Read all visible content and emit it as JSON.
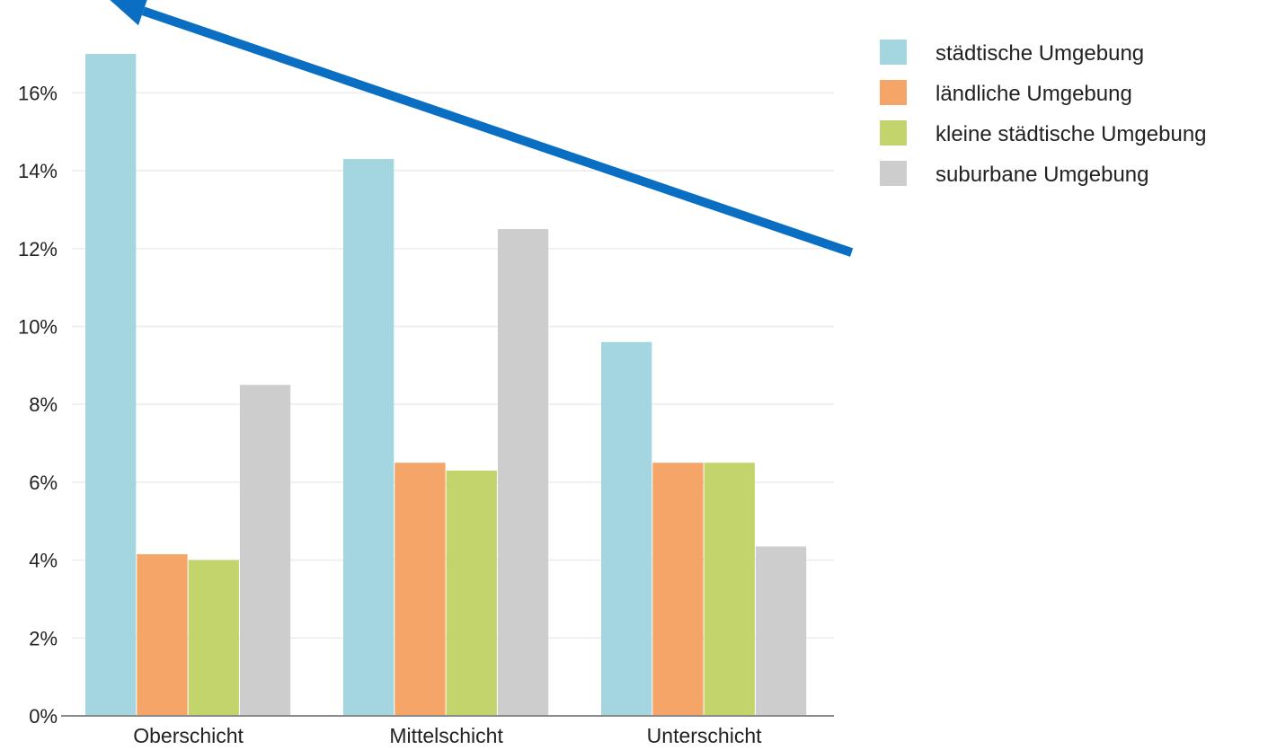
{
  "chart_data": {
    "type": "bar",
    "categories": [
      "Oberschicht",
      "Mittelschicht",
      "Unterschicht"
    ],
    "series": [
      {
        "name": "städtische Umgebung",
        "color": "#a3d6df",
        "values": [
          17.0,
          14.3,
          9.6
        ]
      },
      {
        "name": "ländliche Umgebung",
        "color": "#f4a567",
        "values": [
          4.15,
          6.5,
          6.5
        ]
      },
      {
        "name": "kleine städtische Umgebung",
        "color": "#c2d46b",
        "values": [
          4.0,
          6.3,
          6.5
        ]
      },
      {
        "name": "suburbane Umgebung",
        "color": "#cdcdcd",
        "values": [
          8.5,
          12.5,
          4.35
        ]
      }
    ],
    "ylim": [
      0,
      17
    ],
    "yticks": [
      0,
      2,
      4,
      6,
      8,
      10,
      12,
      14,
      16
    ],
    "ytick_labels": [
      "0%",
      "2%",
      "4%",
      "6%",
      "8%",
      "10%",
      "12%",
      "14%",
      "16%"
    ],
    "grid": true,
    "legend_position": "top-right",
    "annotation": {
      "type": "arrow",
      "color": "#0a6fc2",
      "description": "trend arrow from Unterschicht upward toward Oberschicht",
      "from": {
        "category_index": 2,
        "value": 11.9
      },
      "to": {
        "category_index": 0,
        "value": 18.4
      }
    }
  }
}
